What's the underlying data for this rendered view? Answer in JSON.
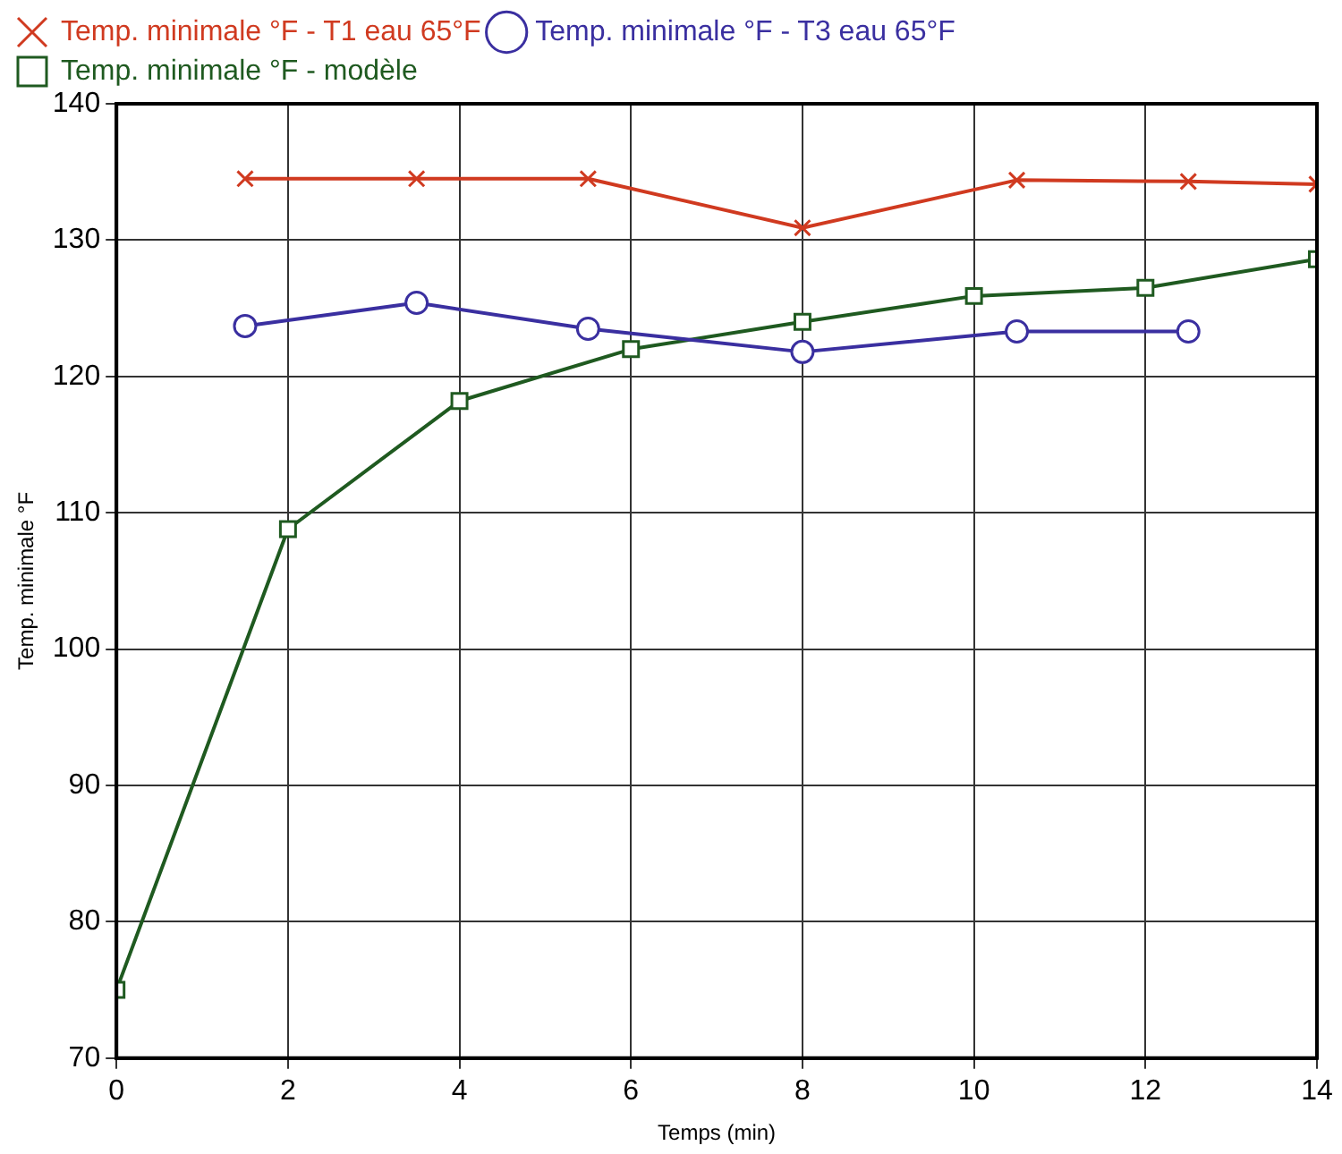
{
  "chart_data": {
    "type": "line",
    "xlabel": "Temps (min)",
    "ylabel": "Temp. minimale °F",
    "xlim": [
      0,
      14
    ],
    "xticks": [
      0,
      2,
      4,
      6,
      8,
      10,
      12,
      14
    ],
    "ylim": [
      70,
      140
    ],
    "yticks": [
      70,
      80,
      90,
      100,
      110,
      120,
      130,
      140
    ],
    "grid": true,
    "legend": "top left",
    "line_style": "solid",
    "series": [
      {
        "name": "Temp. minimale °F - T1 eau 65°F",
        "color": "#d03a20",
        "marker": "cross",
        "x": [
          1.5,
          3.5,
          5.5,
          8,
          10.5,
          12.5,
          14
        ],
        "values": [
          134.5,
          134.5,
          134.5,
          130.9,
          134.4,
          134.3,
          134.1
        ]
      },
      {
        "name": "Temp. minimale °F - T3 eau 65°F",
        "color": "#3a2fa0",
        "marker": "circle",
        "x": [
          1.5,
          3.5,
          5.5,
          8,
          10.5,
          12.5
        ],
        "values": [
          123.7,
          125.4,
          123.5,
          121.8,
          123.3,
          123.3
        ]
      },
      {
        "name": "Temp. minimale °F - modèle",
        "color": "#1f5a20",
        "marker": "square",
        "x": [
          0,
          2,
          4,
          6,
          8,
          10,
          12,
          14
        ],
        "values": [
          75,
          108.8,
          118.2,
          122,
          124,
          125.9,
          126.5,
          128.6
        ]
      }
    ]
  }
}
